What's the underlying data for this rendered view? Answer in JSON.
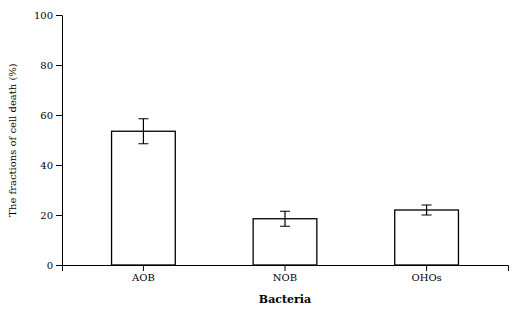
{
  "chart_data": {
    "type": "bar",
    "xlabel": "Bacteria",
    "ylabel": "The fractions of cell death (%)",
    "categories": [
      "AOB",
      "NOB",
      "OHOs"
    ],
    "values": [
      53.5,
      18.5,
      22.0
    ],
    "errors": [
      5.0,
      3.0,
      2.0
    ],
    "color": "#ffffff",
    "ylim": [
      0,
      100
    ],
    "yticks": [
      0,
      20,
      40,
      60,
      80,
      100
    ],
    "grid": false
  }
}
